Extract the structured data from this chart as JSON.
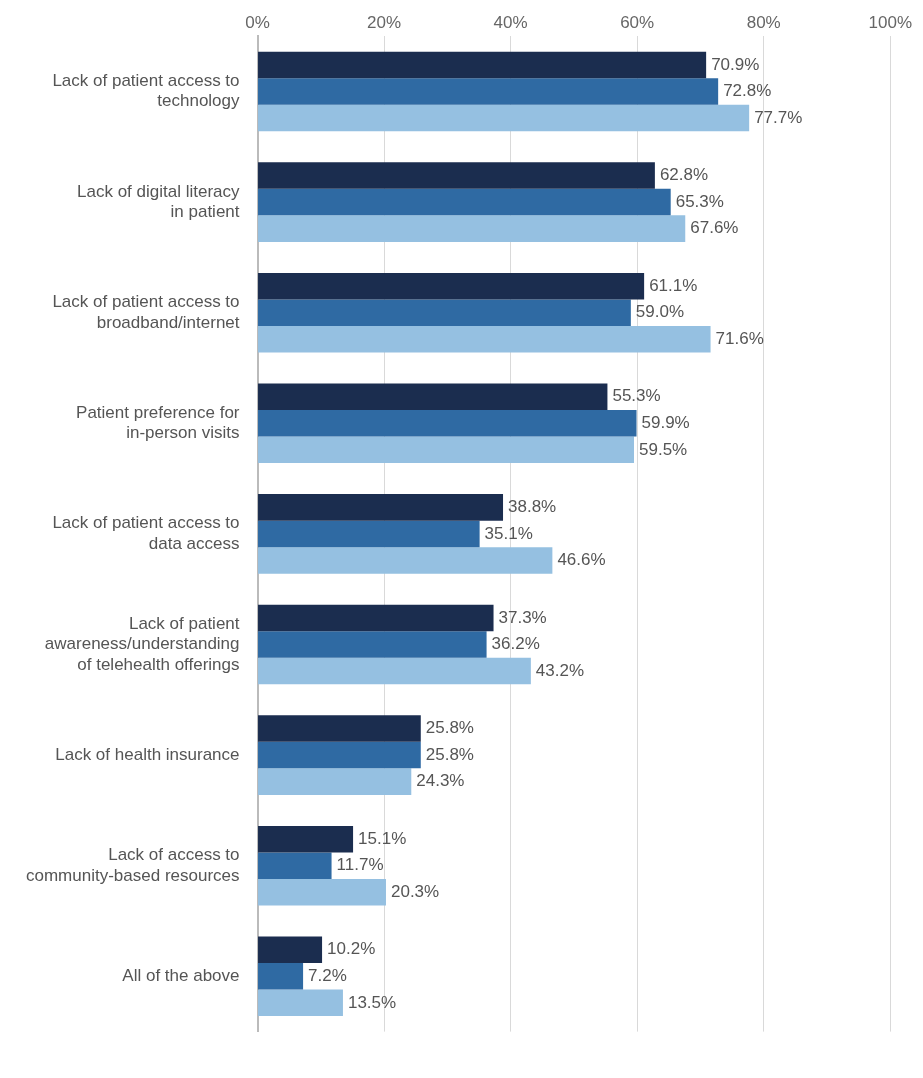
{
  "chart_data": {
    "type": "bar",
    "orientation": "horizontal",
    "categories": [
      "Lack of patient access to\ntechnology",
      "Lack of digital literacy\nin patient",
      "Lack of patient access to\nbroadband/internet",
      "Patient preference for\nin-person visits",
      "Lack of patient access to\ndata access",
      "Lack of patient\nawareness/understanding\nof telehealth offerings",
      "Lack of health insurance",
      "Lack of access to\ncommunity-based resources",
      "All of the above"
    ],
    "series": [
      {
        "color": "#1b2d4f",
        "values": [
          70.9,
          62.8,
          61.1,
          55.3,
          38.8,
          37.3,
          25.8,
          15.1,
          10.2
        ],
        "value_labels": [
          "70.9%",
          "62.8%",
          "61.1%",
          "55.3%",
          "38.8%",
          "37.3%",
          "25.8%",
          "15.1%",
          "10.2%"
        ]
      },
      {
        "color": "#2f6aa3",
        "values": [
          72.8,
          65.3,
          59.0,
          59.9,
          35.1,
          36.2,
          25.8,
          11.7,
          7.2
        ],
        "value_labels": [
          "72.8%",
          "65.3%",
          "59.0%",
          "59.9%",
          "35.1%",
          "36.2%",
          "25.8%",
          "11.7%",
          "7.2%"
        ]
      },
      {
        "color": "#95c0e1",
        "values": [
          77.7,
          67.6,
          71.6,
          59.5,
          46.6,
          43.2,
          24.3,
          20.3,
          13.5
        ],
        "value_labels": [
          "77.7%",
          "67.6%",
          "71.6%",
          "59.5%",
          "46.6%",
          "43.2%",
          "24.3%",
          "20.3%",
          "13.5%"
        ]
      }
    ],
    "xlim": [
      0,
      100
    ],
    "xticks": [
      {
        "value": 0,
        "label": "0%"
      },
      {
        "value": 20,
        "label": "20%"
      },
      {
        "value": 40,
        "label": "40%"
      },
      {
        "value": 60,
        "label": "60%"
      },
      {
        "value": 80,
        "label": "80%"
      },
      {
        "value": 100,
        "label": "100%"
      }
    ],
    "grid": "x",
    "legend": false
  }
}
